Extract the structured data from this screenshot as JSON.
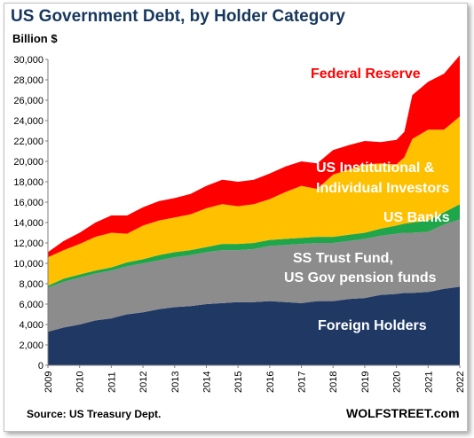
{
  "chart_data": {
    "type": "area",
    "title": "US Government Debt, by Holder Category",
    "ylabel": "Billion $",
    "source": "Source: US Treasury Dept.",
    "brand": "WOLFSTREET.com",
    "ylim": [
      0,
      30000
    ],
    "yticks": [
      "0",
      "2,000",
      "4,000",
      "6,000",
      "8,000",
      "10,000",
      "12,000",
      "14,000",
      "16,000",
      "18,000",
      "20,000",
      "22,000",
      "24,000",
      "26,000",
      "28,000",
      "30,000"
    ],
    "xticks": [
      "2009",
      "2010",
      "2011",
      "2012",
      "2013",
      "2014",
      "2015",
      "2016",
      "2017",
      "2018",
      "2019",
      "2020",
      "2021",
      "2022"
    ],
    "x": [
      2009.0,
      2009.5,
      2010.0,
      2010.5,
      2011.0,
      2011.5,
      2012.0,
      2012.5,
      2013.0,
      2013.5,
      2014.0,
      2014.5,
      2015.0,
      2015.5,
      2016.0,
      2016.5,
      2017.0,
      2017.5,
      2018.0,
      2018.5,
      2019.0,
      2019.5,
      2020.0,
      2020.25,
      2020.5,
      2021.0,
      2021.5,
      2022.0
    ],
    "series": [
      {
        "name": "Foreign Holders",
        "color": "#1f3864",
        "values": [
          3300,
          3700,
          4000,
          4400,
          4600,
          5000,
          5200,
          5500,
          5700,
          5800,
          6000,
          6100,
          6200,
          6200,
          6300,
          6200,
          6100,
          6300,
          6300,
          6500,
          6600,
          6900,
          7000,
          7100,
          7100,
          7200,
          7500,
          7700
        ]
      },
      {
        "name": "SS Trust Fund, US Gov pension funds",
        "color": "#8c8c8c",
        "values": [
          4300,
          4500,
          4600,
          4600,
          4700,
          4700,
          4800,
          4800,
          4900,
          5000,
          5100,
          5200,
          5100,
          5200,
          5400,
          5600,
          5800,
          5700,
          5700,
          5700,
          5800,
          5800,
          5900,
          5900,
          5900,
          5900,
          6300,
          6600
        ]
      },
      {
        "name": "US Banks",
        "color": "#1fa64a",
        "values": [
          200,
          300,
          300,
          300,
          300,
          400,
          400,
          500,
          500,
          500,
          500,
          600,
          600,
          600,
          600,
          600,
          600,
          600,
          600,
          600,
          600,
          700,
          800,
          900,
          1000,
          1100,
          1200,
          1500
        ]
      },
      {
        "name": "US Institutional & Individual Investors",
        "color": "#ffc000",
        "values": [
          2800,
          2800,
          3000,
          3300,
          3400,
          2800,
          3300,
          3400,
          3400,
          3500,
          3800,
          3900,
          3700,
          3800,
          4000,
          4600,
          5100,
          4700,
          6100,
          6400,
          6700,
          6400,
          6000,
          6500,
          8200,
          8900,
          8100,
          8600
        ]
      },
      {
        "name": "Federal Reserve",
        "color": "#ff0000",
        "values": [
          500,
          900,
          1100,
          1400,
          1700,
          1800,
          1800,
          1900,
          1900,
          2000,
          2200,
          2400,
          2400,
          2400,
          2500,
          2500,
          2400,
          2500,
          2400,
          2400,
          2300,
          2100,
          2400,
          2500,
          4300,
          4700,
          5500,
          6000
        ]
      }
    ]
  }
}
